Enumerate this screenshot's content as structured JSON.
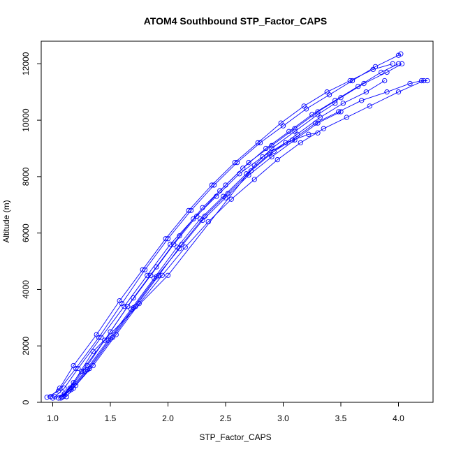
{
  "chart_data": {
    "type": "line",
    "title": "ATOM4 Southbound STP_Factor_CAPS",
    "xlabel": "STP_Factor_CAPS",
    "ylabel": "Altitude (m)",
    "xlim": [
      0.9,
      4.3
    ],
    "ylim": [
      0,
      12800
    ],
    "x_ticks": [
      1.0,
      1.5,
      2.0,
      2.5,
      3.0,
      3.5,
      4.0
    ],
    "x_tick_labels": [
      "1.0",
      "1.5",
      "2.0",
      "2.5",
      "3.0",
      "3.5",
      "4.0"
    ],
    "y_ticks": [
      0,
      2000,
      4000,
      6000,
      8000,
      10000,
      12000
    ],
    "y_tick_labels": [
      "0",
      "2000",
      "4000",
      "6000",
      "8000",
      "10000",
      "12000"
    ],
    "marker": "open-circle",
    "color": "#0000ff",
    "series": [
      {
        "x": [
          0.95,
          1.05,
          1.2,
          1.4,
          1.6,
          1.8,
          2.0,
          2.2,
          2.4,
          2.6,
          2.8,
          3.0,
          3.2,
          3.4,
          3.6,
          3.8,
          4.0,
          4.02
        ],
        "y": [
          180,
          400,
          1200,
          2300,
          3500,
          4700,
          5800,
          6800,
          7700,
          8500,
          9200,
          9800,
          10400,
          10900,
          11400,
          11900,
          12300,
          12350
        ]
      },
      {
        "x": [
          1.0,
          1.1,
          1.25,
          1.45,
          1.65,
          1.85,
          2.05,
          2.25,
          2.45,
          2.65,
          2.85,
          3.05,
          3.25,
          3.45,
          3.65,
          3.85,
          4.0
        ],
        "y": [
          150,
          300,
          1100,
          2200,
          3400,
          4500,
          5600,
          6600,
          7500,
          8300,
          9000,
          9600,
          10200,
          10700,
          11200,
          11700,
          12000
        ]
      },
      {
        "x": [
          1.08,
          1.15,
          1.3,
          1.5,
          1.7,
          1.9,
          2.1,
          2.3,
          2.5,
          2.7,
          2.9,
          3.1,
          3.3,
          3.5,
          3.7,
          3.9,
          4.03
        ],
        "y": [
          180,
          500,
          1300,
          2500,
          3700,
          4800,
          5900,
          6900,
          7700,
          8500,
          9100,
          9700,
          10300,
          10800,
          11300,
          11700,
          12000
        ]
      },
      {
        "x": [
          1.12,
          1.18,
          1.32,
          1.52,
          1.72,
          1.92,
          2.12,
          2.32,
          2.52,
          2.72,
          2.92,
          3.12,
          3.32,
          3.52,
          3.72,
          3.88
        ],
        "y": [
          200,
          500,
          1200,
          2300,
          3400,
          4500,
          5600,
          6600,
          7400,
          8200,
          8900,
          9500,
          10100,
          10600,
          11000,
          11400
        ]
      },
      {
        "x": [
          1.05,
          1.14,
          1.28,
          1.48,
          1.68,
          1.88,
          2.08,
          2.28,
          2.48,
          2.68,
          2.88,
          3.08,
          3.28,
          3.48,
          3.68,
          3.9,
          4.1,
          4.2,
          4.25
        ],
        "y": [
          150,
          400,
          1100,
          2200,
          3300,
          4400,
          5500,
          6500,
          7300,
          8100,
          8800,
          9300,
          9900,
          10300,
          10700,
          11000,
          11300,
          11400,
          11400
        ]
      },
      {
        "x": [
          1.1,
          1.2,
          1.35,
          1.55,
          1.75,
          1.95,
          2.15,
          2.35,
          2.55,
          2.75,
          2.95,
          3.15,
          3.35,
          3.55,
          3.75,
          4.0,
          4.22
        ],
        "y": [
          250,
          600,
          1300,
          2400,
          3500,
          4500,
          5500,
          6400,
          7200,
          7900,
          8600,
          9200,
          9700,
          10100,
          10500,
          11000,
          11400
        ]
      },
      {
        "x": [
          1.02,
          1.1,
          1.22,
          1.42,
          1.62,
          1.82,
          2.02,
          2.22,
          2.42,
          2.62,
          2.82,
          3.02,
          3.22,
          3.3
        ],
        "y": [
          200,
          500,
          1200,
          2300,
          3400,
          4500,
          5600,
          6500,
          7300,
          8100,
          8700,
          9200,
          9500,
          9550
        ]
      },
      {
        "x": [
          1.07,
          1.16,
          1.3,
          1.5,
          1.7,
          1.9,
          2.1,
          2.3,
          2.5,
          2.7,
          2.9,
          3.1,
          3.3,
          3.5
        ],
        "y": [
          150,
          450,
          1150,
          2250,
          3350,
          4450,
          5450,
          6450,
          7250,
          8050,
          8700,
          9300,
          9900,
          10300
        ]
      },
      {
        "x": [
          1.09,
          1.18,
          1.35,
          2.0,
          2.75,
          2.9,
          3.1,
          3.3,
          3.45
        ],
        "y": [
          200,
          700,
          1800,
          4500,
          8400,
          9000,
          9600,
          10200,
          10600
        ]
      },
      {
        "x": [
          0.98,
          1.06,
          1.18,
          1.38,
          1.58,
          1.78,
          1.98,
          2.18,
          2.38,
          2.58,
          2.78,
          2.98,
          3.18,
          3.38,
          3.58,
          3.78,
          3.95
        ],
        "y": [
          200,
          500,
          1300,
          2400,
          3600,
          4700,
          5800,
          6800,
          7700,
          8500,
          9200,
          9900,
          10500,
          11000,
          11400,
          11800,
          12000
        ]
      }
    ]
  }
}
